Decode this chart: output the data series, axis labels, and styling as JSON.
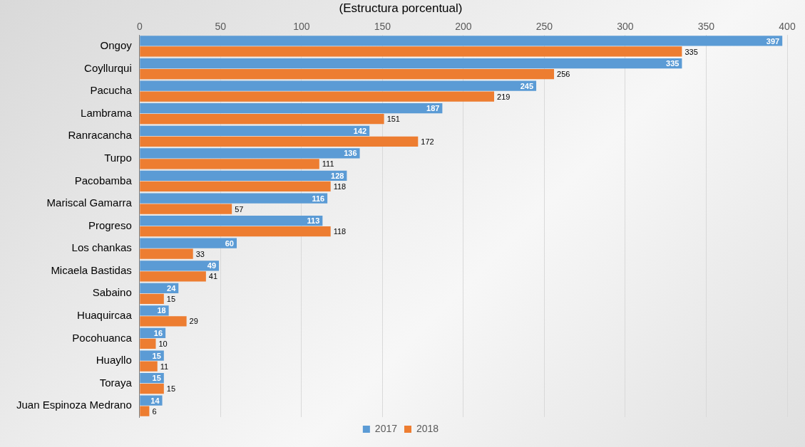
{
  "chart_data": {
    "type": "bar",
    "orientation": "horizontal",
    "title": "(Estructura porcentual)",
    "categories": [
      "Ongoy",
      "Coyllurqui",
      "Pacucha",
      "Lambrama",
      "Ranracancha",
      "Turpo",
      "Pacobamba",
      "Mariscal Gamarra",
      "Progreso",
      "Los chankas",
      "Micaela Bastidas",
      "Sabaino",
      "Huaquircaa",
      "Pocohuanca",
      "Huayllo",
      "Toraya",
      "Juan Espinoza Medrano"
    ],
    "series": [
      {
        "name": "2017",
        "color": "#5b9bd5",
        "values": [
          397,
          335,
          245,
          187,
          142,
          136,
          128,
          116,
          113,
          60,
          49,
          24,
          18,
          16,
          15,
          15,
          14
        ]
      },
      {
        "name": "2018",
        "color": "#ed7d31",
        "values": [
          335,
          256,
          219,
          151,
          172,
          111,
          118,
          57,
          118,
          33,
          41,
          15,
          29,
          10,
          11,
          15,
          6
        ]
      }
    ],
    "xlim": [
      0,
      400
    ],
    "xticks": [
      0,
      50,
      100,
      150,
      200,
      250,
      300,
      350,
      400
    ],
    "grid": "x",
    "legend": "bottom",
    "data_labels": true
  }
}
